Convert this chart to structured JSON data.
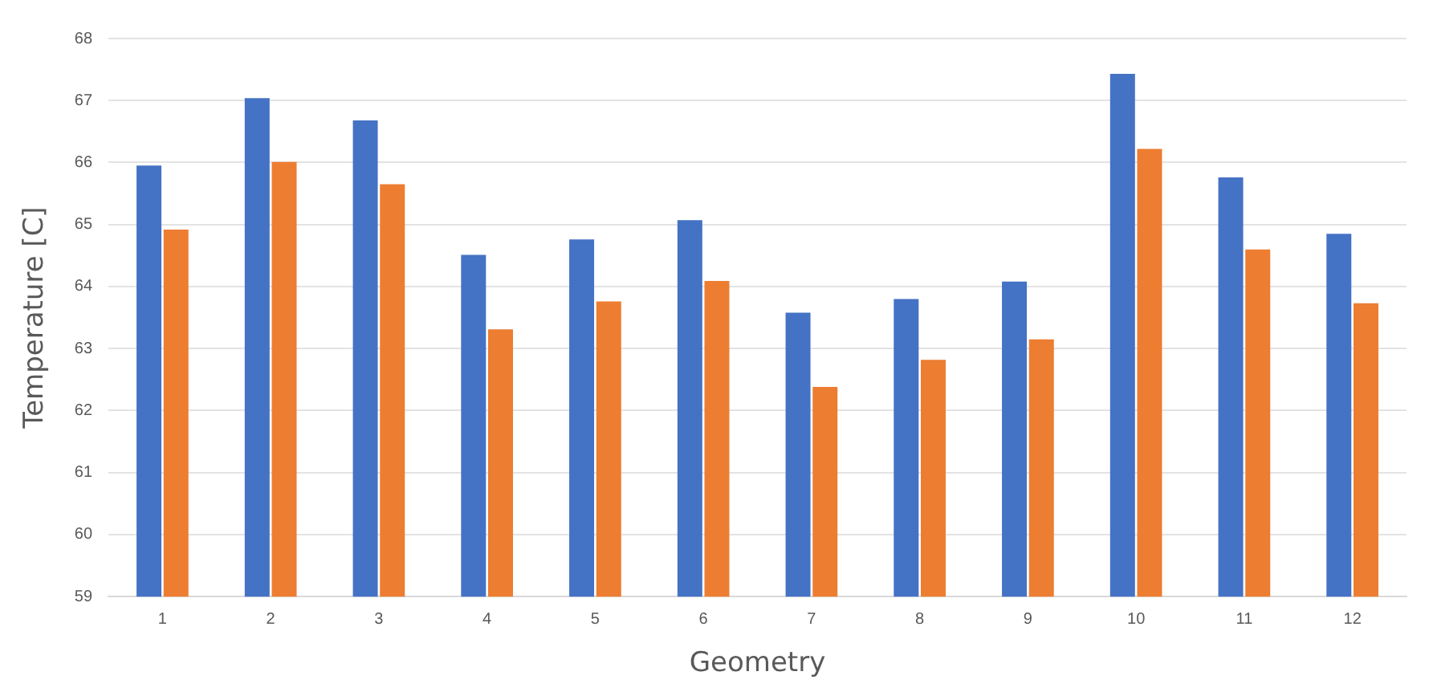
{
  "chart_data": {
    "type": "bar",
    "xlabel": "Geometry",
    "ylabel": "Temperature [C]",
    "categories": [
      "1",
      "2",
      "3",
      "4",
      "5",
      "6",
      "7",
      "8",
      "9",
      "10",
      "11",
      "12"
    ],
    "series": [
      {
        "color": "#4472c4",
        "values": [
          65.95,
          67.04,
          66.68,
          64.51,
          64.76,
          65.07,
          63.58,
          63.8,
          64.08,
          67.43,
          65.76,
          64.85
        ]
      },
      {
        "color": "#ed7d31",
        "values": [
          64.92,
          66.01,
          65.65,
          63.31,
          63.76,
          64.09,
          62.38,
          62.82,
          63.15,
          66.22,
          64.6,
          63.73
        ]
      }
    ],
    "ylim": [
      59,
      68
    ],
    "yticks": [
      59,
      60,
      61,
      62,
      63,
      64,
      65,
      66,
      67,
      68
    ],
    "grid": "y",
    "legend": false
  }
}
